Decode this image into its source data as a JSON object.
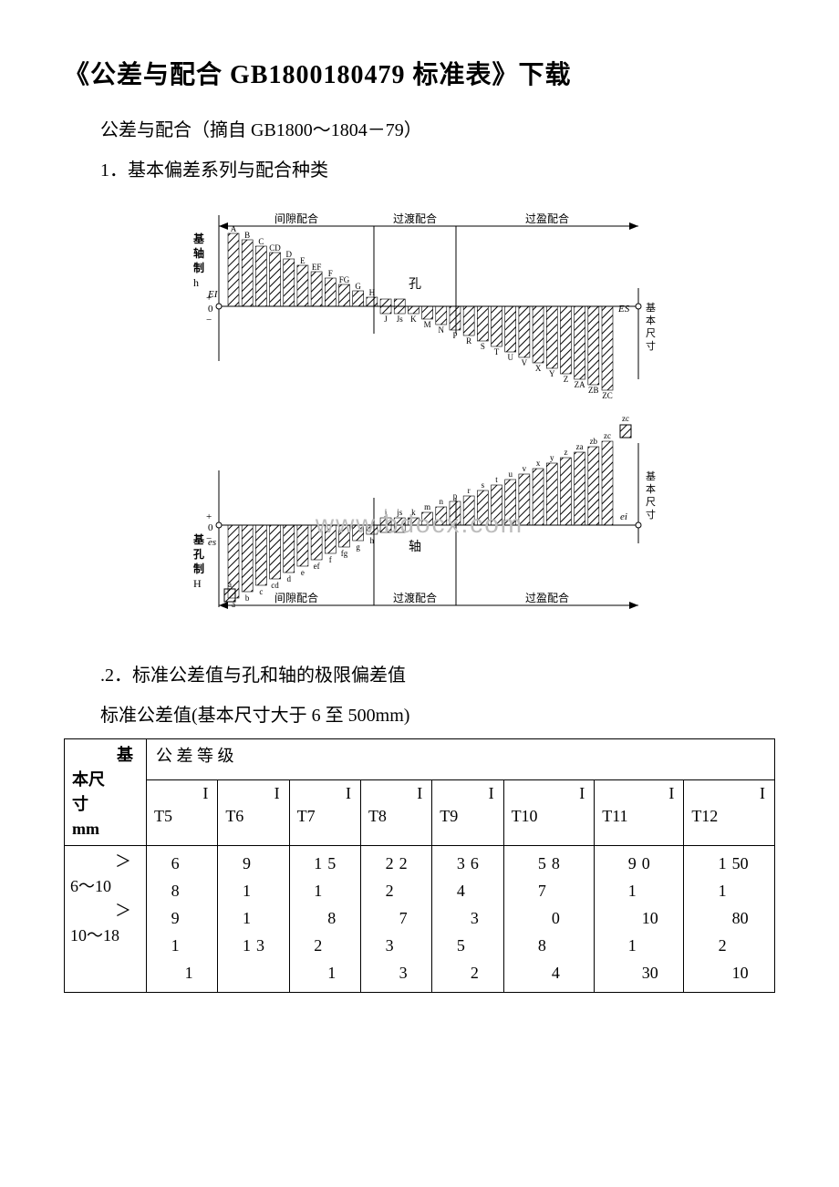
{
  "title": "《公差与配合 GB1800180479 标准表》下载",
  "line_subtitle": "公差与配合（摘自 GB1800～1804－79）",
  "line_section1": "1．基本偏差系列与配合种类",
  "line_section2": ".2．标准公差值与孔和轴的极限偏差值",
  "line_caption": "标准公差值(基本尺寸大于 6 至 500mm)",
  "diagram": {
    "labels": {
      "clearance": "间隙配合",
      "transition": "过渡配合",
      "interference": "过盈配合",
      "hole": "孔",
      "shaft": "轴",
      "base_shaft_system": "基轴制",
      "base_hole_system": "基孔制",
      "basic_size": "基本尺寸",
      "zero": "0",
      "plus": "+",
      "minus": "−",
      "h_big": "h",
      "H_big": "H",
      "EI": "EI",
      "ES": "ES",
      "es": "es",
      "ei": "ei"
    },
    "upper_letters": [
      "A",
      "B",
      "C",
      "CD",
      "D",
      "E",
      "EF",
      "F",
      "FG",
      "G",
      "H",
      "J",
      "Js",
      "K",
      "M",
      "N",
      "P",
      "R",
      "S",
      "T",
      "U",
      "V",
      "X",
      "Y",
      "Z",
      "ZA",
      "ZB",
      "ZC"
    ],
    "lower_letters": [
      "a",
      "b",
      "c",
      "cd",
      "d",
      "e",
      "ef",
      "f",
      "fg",
      "g",
      "h",
      "j",
      "js",
      "k",
      "m",
      "n",
      "p",
      "r",
      "s",
      "t",
      "u",
      "v",
      "x",
      "y",
      "z",
      "za",
      "zb",
      "zc"
    ],
    "hatch_color": "#000000",
    "stroke_color": "#000000",
    "text_color": "#000000",
    "font_size_letters": 9,
    "font_size_labels": 12,
    "watermark": "www.bdocx.com",
    "watermark_color": "#bdbdbd"
  },
  "table": {
    "size_header_1": "基",
    "size_header_2": "本尺",
    "size_header_3": "寸",
    "size_header_4": "mm",
    "grade_header": "公 差 等 级",
    "grades": [
      {
        "prefix": "I",
        "name": "T5"
      },
      {
        "prefix": "I",
        "name": "T6"
      },
      {
        "prefix": "I",
        "name": "T7"
      },
      {
        "prefix": "I",
        "name": "T8"
      },
      {
        "prefix": "I",
        "name": "T9"
      },
      {
        "prefix": "I",
        "name": "T10"
      },
      {
        "prefix": "I",
        "name": "T11"
      },
      {
        "prefix": "I",
        "name": "T12"
      }
    ],
    "size_rows": [
      {
        "gt": "＞",
        "range": "6～10"
      },
      {
        "gt": "＞",
        "range": "10～18"
      },
      {
        "gt": "",
        "range": ""
      }
    ],
    "value_rows": [
      [
        {
          "r": "6",
          "l": ""
        },
        {
          "r": "9",
          "l": ""
        },
        {
          "r": "1",
          "l": "5"
        },
        {
          "r": "2",
          "l": "2"
        },
        {
          "r": "3",
          "l": "6"
        },
        {
          "r": "5",
          "l": "8"
        },
        {
          "r": "9",
          "l": "0"
        },
        {
          "r": "1",
          "l": "50"
        }
      ],
      [
        {
          "r": "8",
          "l": ""
        },
        {
          "r": "1",
          "l": ""
        },
        {
          "r": "1",
          "l": ""
        },
        {
          "r": "2",
          "l": ""
        },
        {
          "r": "4",
          "l": ""
        },
        {
          "r": "7",
          "l": ""
        },
        {
          "r": "1",
          "l": ""
        },
        {
          "r": "1",
          "l": ""
        }
      ],
      [
        {
          "r": "9",
          "l": ""
        },
        {
          "r": "1",
          "l": ""
        },
        {
          "r": "",
          "l": "8"
        },
        {
          "r": "",
          "l": "7"
        },
        {
          "r": "",
          "l": "3"
        },
        {
          "r": "",
          "l": "0"
        },
        {
          "r": "",
          "l": "10"
        },
        {
          "r": "",
          "l": "80"
        }
      ],
      [
        {
          "r": "1",
          "l": ""
        },
        {
          "r": "1",
          "l": "3"
        },
        {
          "r": "2",
          "l": ""
        },
        {
          "r": "3",
          "l": ""
        },
        {
          "r": "5",
          "l": ""
        },
        {
          "r": "8",
          "l": ""
        },
        {
          "r": "1",
          "l": ""
        },
        {
          "r": "2",
          "l": ""
        }
      ],
      [
        {
          "r": "",
          "l": "1"
        },
        {
          "r": "",
          "l": ""
        },
        {
          "r": "",
          "l": "1"
        },
        {
          "r": "",
          "l": "3"
        },
        {
          "r": "",
          "l": "2"
        },
        {
          "r": "",
          "l": "4"
        },
        {
          "r": "",
          "l": "30"
        },
        {
          "r": "",
          "l": "10"
        }
      ]
    ]
  },
  "colors": {
    "text": "#000000",
    "background": "#ffffff",
    "border": "#000000"
  }
}
